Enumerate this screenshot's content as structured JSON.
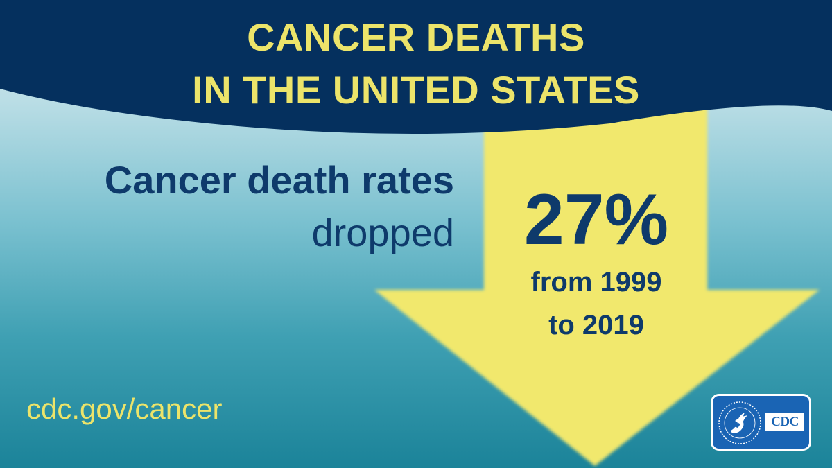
{
  "banner": {
    "title_line1": "CANCER DEATHS",
    "title_line2": "IN THE UNITED STATES"
  },
  "headline": {
    "main": "Cancer death rates",
    "sub": "dropped"
  },
  "stat": {
    "percent": "27%",
    "range_line1": "from 1999",
    "range_line2": "to 2019"
  },
  "footer": {
    "url": "cdc.gov/cancer"
  },
  "logo": {
    "text": "CDC"
  },
  "colors": {
    "navy": "#0e3a6b",
    "banner": "#05305e",
    "yellow": "#ece46a",
    "arrow": "#f1e86d",
    "logo_blue": "#1a64b4"
  }
}
